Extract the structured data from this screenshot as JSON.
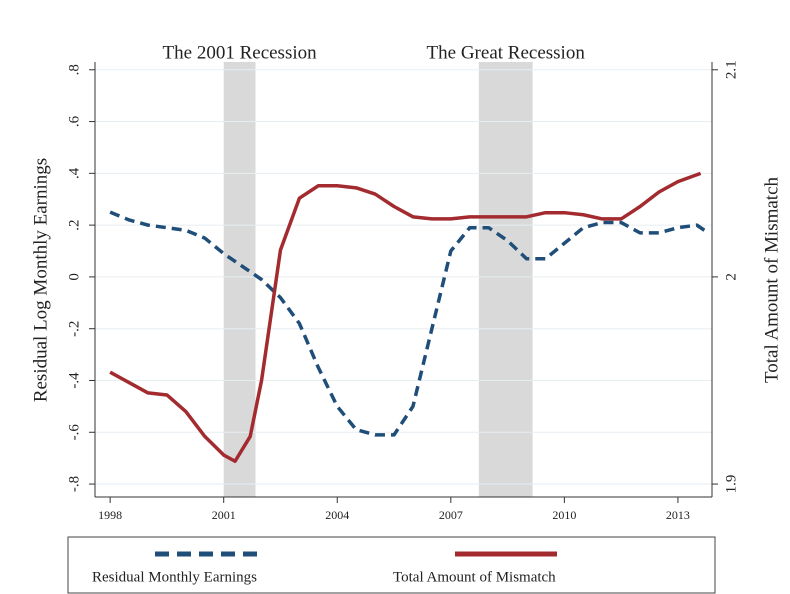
{
  "chart_data": {
    "type": "line",
    "ylabel": "Residual Log Monthly Earnings",
    "y2label": "Total Amount of Mismatch",
    "xlim": [
      1997.6,
      2013.9
    ],
    "xticks": [
      1998,
      2001,
      2004,
      2007,
      2010,
      2013
    ],
    "ylim": [
      -0.85,
      0.83
    ],
    "yticks": [
      {
        "value": 0.8,
        "label": ".8"
      },
      {
        "value": 0.6,
        "label": ".6"
      },
      {
        "value": 0.4,
        "label": ".4"
      },
      {
        "value": 0.2,
        "label": ".2"
      },
      0,
      {
        "value": -0.2,
        "label": "-.2"
      },
      {
        "value": -0.4,
        "label": "-.4"
      },
      {
        "value": -0.6,
        "label": "-.6"
      },
      {
        "value": -0.8,
        "label": "-.8"
      }
    ],
    "y2lim": [
      1.89375,
      2.10375
    ],
    "y2ticks": [
      2.1,
      2,
      1.9
    ],
    "grid": true,
    "shaded": [
      {
        "label": "The 2001 Recession",
        "x": [
          2001,
          2001.84
        ]
      },
      {
        "label": "The Great Recession",
        "x": [
          2007.74,
          2009.16
        ]
      }
    ],
    "series": [
      {
        "name": "Residual Monthly Earnings",
        "color": "#1f4e79",
        "dash": true,
        "axis": "y",
        "x": [
          1998,
          1998.5,
          1999,
          1999.5,
          2000,
          2000.5,
          2001,
          2001.5,
          2002,
          2002.5,
          2003,
          2003.5,
          2004,
          2004.5,
          2005,
          2005.5,
          2006,
          2006.5,
          2007,
          2007.5,
          2008,
          2008.5,
          2009,
          2009.5,
          2010,
          2010.5,
          2011,
          2011.5,
          2012,
          2012.5,
          2013,
          2013.5,
          2013.7
        ],
        "values": [
          0.25,
          0.22,
          0.2,
          0.19,
          0.18,
          0.15,
          0.09,
          0.04,
          -0.01,
          -0.08,
          -0.18,
          -0.35,
          -0.5,
          -0.59,
          -0.61,
          -0.61,
          -0.5,
          -0.2,
          0.1,
          0.19,
          0.19,
          0.14,
          0.07,
          0.07,
          0.13,
          0.19,
          0.21,
          0.21,
          0.17,
          0.17,
          0.19,
          0.2,
          0.18
        ]
      },
      {
        "name": "Total Amount of Mismatch",
        "color": "#a32b2f",
        "dash": false,
        "axis": "y2",
        "x": [
          1998,
          1998.5,
          1999,
          1999.5,
          2000,
          2000.5,
          2001,
          2001.3,
          2001.7,
          2002,
          2002.5,
          2003,
          2003.5,
          2004,
          2004.5,
          2005,
          2005.5,
          2006,
          2006.5,
          2007,
          2007.5,
          2008,
          2008.5,
          2009,
          2009.5,
          2010,
          2010.5,
          2011,
          2011.5,
          2012,
          2012.5,
          2013,
          2013.6
        ],
        "values": [
          1.954,
          1.949,
          1.944,
          1.943,
          1.935,
          1.923,
          1.914,
          1.911,
          1.923,
          1.95,
          2.013,
          2.038,
          2.044,
          2.044,
          2.043,
          2.04,
          2.034,
          2.029,
          2.028,
          2.028,
          2.029,
          2.029,
          2.029,
          2.029,
          2.031,
          2.031,
          2.03,
          2.028,
          2.028,
          2.034,
          2.041,
          2.046,
          2.05
        ]
      }
    ]
  }
}
